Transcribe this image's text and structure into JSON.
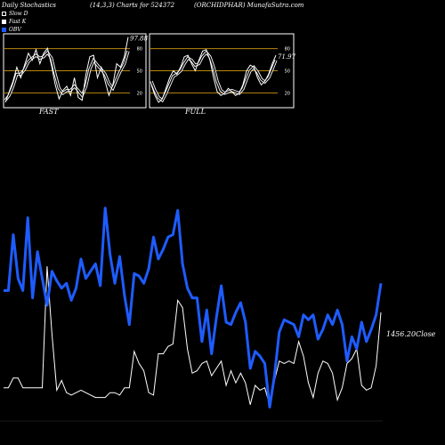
{
  "header": {
    "title_left": "Daily Stochastics",
    "title_mid": "(14,3,3) Charts for 524372",
    "title_right": "(ORCHIDPHAR) MunafaSutra.com"
  },
  "legend": [
    {
      "label": "Slow D",
      "color": "#000000"
    },
    {
      "label": "Fast K",
      "color": "#ffffff"
    },
    {
      "label": "OBV",
      "color": "#1e5cff"
    }
  ],
  "panels": {
    "fast_label": "FAST",
    "full_label": "FULL",
    "fast_value_label": "97.88",
    "full_value_label": "71.97"
  },
  "close_label": "1456.20Close",
  "colors": {
    "background": "#000000",
    "obv": "#1e5cff",
    "price": "#ffffff",
    "band": "#b8860b"
  },
  "chart_data": [
    {
      "type": "line",
      "panel": "FAST",
      "ylim": [
        0,
        100
      ],
      "ticks": [
        "20",
        "50",
        "80"
      ],
      "bands": [
        20,
        50,
        80
      ],
      "series": [
        {
          "name": "Fast K",
          "values": [
            5,
            20,
            35,
            55,
            40,
            58,
            75,
            65,
            80,
            60,
            75,
            82,
            58,
            30,
            10,
            22,
            28,
            15,
            40,
            12,
            8,
            45,
            70,
            72,
            40,
            55,
            35,
            15,
            30,
            60,
            55,
            70,
            97.88
          ]
        },
        {
          "name": "Slow D",
          "values": [
            8,
            15,
            28,
            45,
            45,
            52,
            63,
            68,
            72,
            68,
            70,
            76,
            68,
            45,
            25,
            18,
            22,
            22,
            28,
            22,
            15,
            28,
            52,
            65,
            58,
            52,
            45,
            32,
            25,
            38,
            50,
            60,
            78
          ]
        }
      ]
    },
    {
      "type": "line",
      "panel": "FULL",
      "ylim": [
        0,
        100
      ],
      "ticks": [
        "20",
        "50",
        "80"
      ],
      "bands": [
        20,
        50,
        80
      ],
      "series": [
        {
          "name": "Full K",
          "values": [
            30,
            15,
            5,
            10,
            25,
            40,
            50,
            45,
            55,
            70,
            72,
            60,
            50,
            65,
            78,
            80,
            65,
            40,
            20,
            15,
            18,
            25,
            20,
            15,
            18,
            30,
            50,
            58,
            55,
            40,
            30,
            35,
            45,
            60,
            71.97
          ]
        },
        {
          "name": "Full D",
          "values": [
            35,
            22,
            12,
            8,
            18,
            30,
            42,
            45,
            50,
            60,
            68,
            65,
            58,
            60,
            70,
            76,
            70,
            55,
            35,
            22,
            18,
            20,
            22,
            20,
            18,
            24,
            38,
            50,
            55,
            48,
            38,
            34,
            40,
            52,
            65
          ]
        }
      ]
    },
    {
      "type": "line",
      "panel": "main",
      "series": [
        {
          "name": "OBV",
          "values": [
            50,
            50,
            73,
            55,
            50,
            80,
            47,
            66,
            55,
            44,
            58,
            54,
            51,
            53,
            46,
            51,
            63,
            55,
            58,
            61,
            52,
            84,
            65,
            53,
            64,
            48,
            36,
            57,
            56,
            53,
            59,
            72,
            63,
            67,
            72,
            73,
            83,
            61,
            51,
            47,
            47,
            29,
            42,
            24,
            39,
            52,
            37,
            36,
            41,
            45,
            37,
            18,
            25,
            23,
            20,
            2,
            15,
            33,
            38,
            37,
            36,
            31,
            40,
            38,
            40,
            30,
            34,
            40,
            36,
            42,
            36,
            21,
            31,
            26,
            37,
            29,
            34,
            40,
            53
          ]
        },
        {
          "name": "Close",
          "values": [
            10,
            10,
            14,
            14,
            10,
            10,
            10,
            10,
            10,
            60,
            32,
            9,
            13,
            8,
            7,
            8,
            9,
            8,
            7,
            6,
            6,
            6,
            8,
            8,
            7,
            10,
            10,
            25,
            20,
            17,
            8,
            7,
            24,
            24,
            27,
            28,
            46,
            43,
            26,
            16,
            17,
            20,
            21,
            15,
            18,
            21,
            11,
            17,
            12,
            16,
            12,
            3,
            11,
            9,
            10,
            3,
            13,
            21,
            20,
            21,
            20,
            29,
            23,
            12,
            6,
            16,
            21,
            20,
            16,
            5,
            10,
            20,
            22,
            26,
            11,
            9,
            10,
            19,
            41
          ]
        }
      ]
    }
  ]
}
